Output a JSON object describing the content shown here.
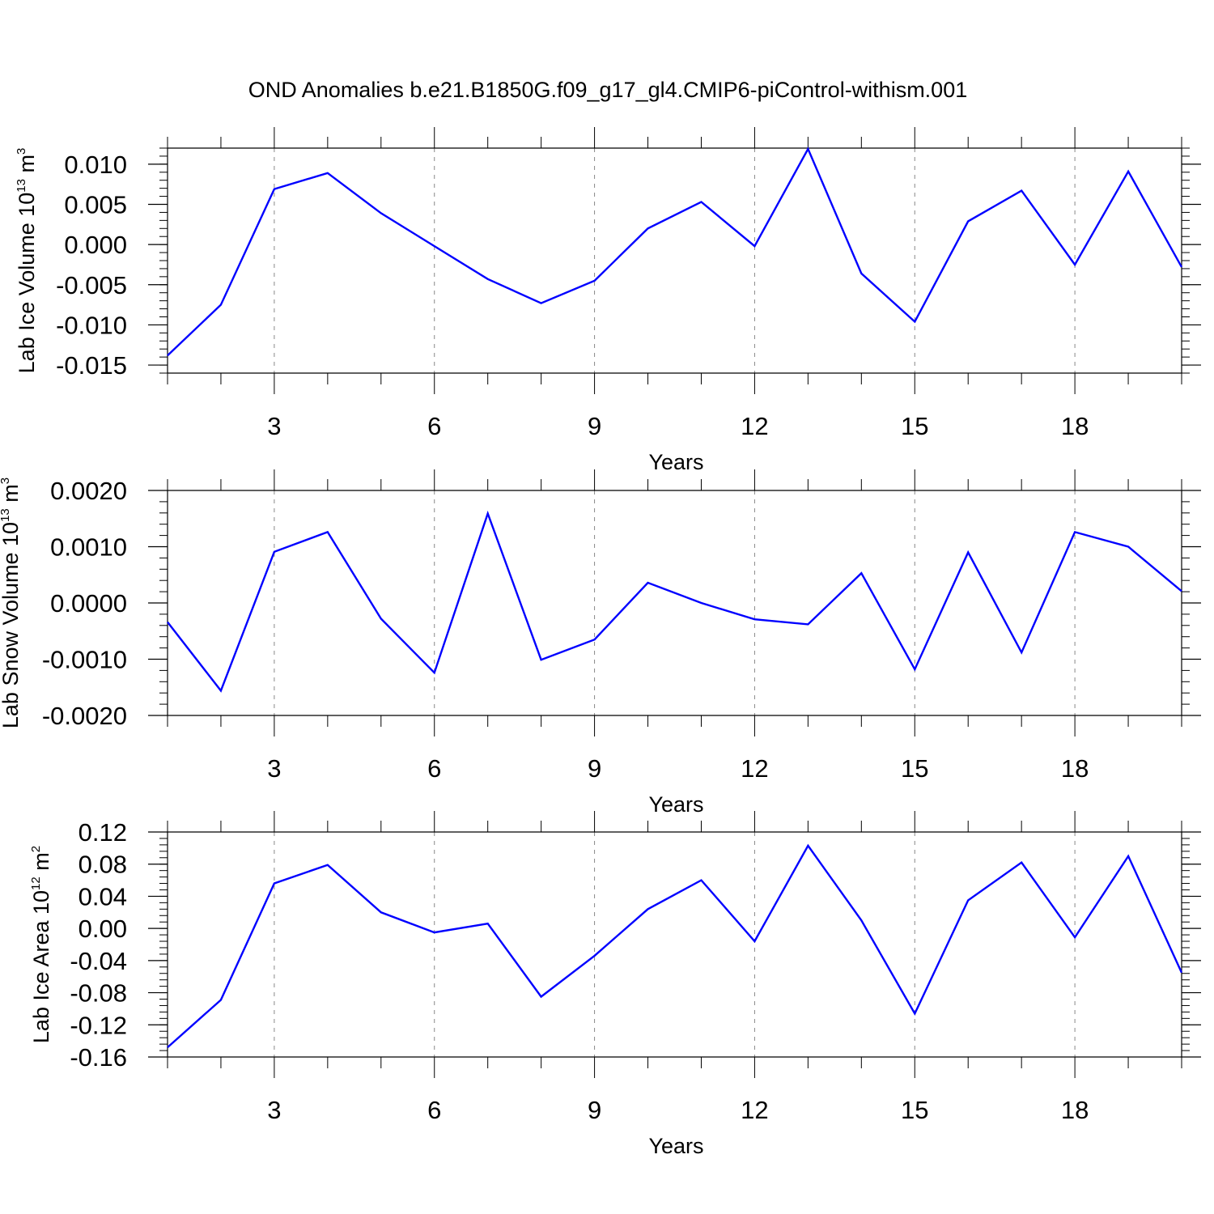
{
  "title": "OND Anomalies b.e21.B1850G.f09_g17_gl4.CMIP6-piControl-withism.001",
  "colors": {
    "line": "#0000ff",
    "axis": "#000000",
    "grid": "#888888",
    "background": "#ffffff"
  },
  "chart_data": [
    {
      "type": "line",
      "ylabel": {
        "text": "Lab Ice Volume 10",
        "exp": "13",
        "unit": " m",
        "unit_exp": "3"
      },
      "xlabel": "Years",
      "xlim": [
        1,
        20
      ],
      "ylim": [
        -0.016,
        0.012
      ],
      "xticks": [
        3,
        6,
        9,
        12,
        15,
        18
      ],
      "xtick_labels": [
        "3",
        "6",
        "9",
        "12",
        "15",
        "18"
      ],
      "yticks": [
        0.01,
        0.005,
        0.0,
        -0.005,
        -0.01,
        -0.015
      ],
      "ytick_labels": [
        "0.010",
        "0.005",
        "0.000",
        "-0.005",
        "-0.010",
        "-0.015"
      ],
      "grid": "vertical dashed at x ticks",
      "series": [
        {
          "x": [
            1,
            2,
            3,
            4,
            5,
            6,
            7,
            8,
            9,
            10,
            11,
            12,
            13,
            14,
            15,
            16,
            17,
            18,
            19,
            20
          ],
          "values": [
            -0.0138,
            -0.0075,
            0.0069,
            0.0089,
            0.0039,
            -0.0002,
            -0.0043,
            -0.0073,
            -0.0045,
            0.002,
            0.0053,
            -0.0002,
            0.0119,
            -0.0036,
            -0.0096,
            0.0029,
            0.0067,
            -0.0025,
            0.0091,
            -0.0028
          ]
        }
      ]
    },
    {
      "type": "line",
      "ylabel": {
        "text": "Lab Snow Volume 10",
        "exp": "13",
        "unit": " m",
        "unit_exp": "3"
      },
      "xlabel": "Years",
      "xlim": [
        1,
        20
      ],
      "ylim": [
        -0.002,
        0.002
      ],
      "xticks": [
        3,
        6,
        9,
        12,
        15,
        18
      ],
      "xtick_labels": [
        "3",
        "6",
        "9",
        "12",
        "15",
        "18"
      ],
      "yticks": [
        0.002,
        0.001,
        0.0,
        -0.001,
        -0.002
      ],
      "ytick_labels": [
        "0.0020",
        "0.0010",
        "0.0000",
        "-0.0010",
        "-0.0020"
      ],
      "grid": "vertical dashed at x ticks",
      "series": [
        {
          "x": [
            1,
            2,
            3,
            4,
            5,
            6,
            7,
            8,
            9,
            10,
            11,
            12,
            13,
            14,
            15,
            16,
            17,
            18,
            19,
            20
          ],
          "values": [
            -0.00034,
            -0.00156,
            0.00091,
            0.00126,
            -0.00028,
            -0.00124,
            0.00159,
            -0.00101,
            -0.00065,
            0.00036,
            0.0,
            -0.00029,
            -0.00038,
            0.00053,
            -0.00118,
            0.0009,
            -0.00088,
            0.00126,
            0.001,
            0.00021
          ]
        }
      ]
    },
    {
      "type": "line",
      "ylabel": {
        "text": "Lab Ice Area 10",
        "exp": "12",
        "unit": " m",
        "unit_exp": "2"
      },
      "xlabel": "Years",
      "xlim": [
        1,
        20
      ],
      "ylim": [
        -0.16,
        0.12
      ],
      "xticks": [
        3,
        6,
        9,
        12,
        15,
        18
      ],
      "xtick_labels": [
        "3",
        "6",
        "9",
        "12",
        "15",
        "18"
      ],
      "yticks": [
        0.12,
        0.08,
        0.04,
        0.0,
        -0.04,
        -0.08,
        -0.12,
        -0.16
      ],
      "ytick_labels": [
        "0.12",
        "0.08",
        "0.04",
        "0.00",
        "-0.04",
        "-0.08",
        "-0.12",
        "-0.16"
      ],
      "grid": "vertical dashed at x ticks",
      "series": [
        {
          "x": [
            1,
            2,
            3,
            4,
            5,
            6,
            7,
            8,
            9,
            10,
            11,
            12,
            13,
            14,
            15,
            16,
            17,
            18,
            19,
            20
          ],
          "values": [
            -0.148,
            -0.089,
            0.056,
            0.079,
            0.02,
            -0.005,
            0.006,
            -0.085,
            -0.034,
            0.024,
            0.06,
            -0.016,
            0.103,
            0.01,
            -0.106,
            0.035,
            0.082,
            -0.011,
            0.09,
            -0.055
          ]
        }
      ]
    }
  ]
}
